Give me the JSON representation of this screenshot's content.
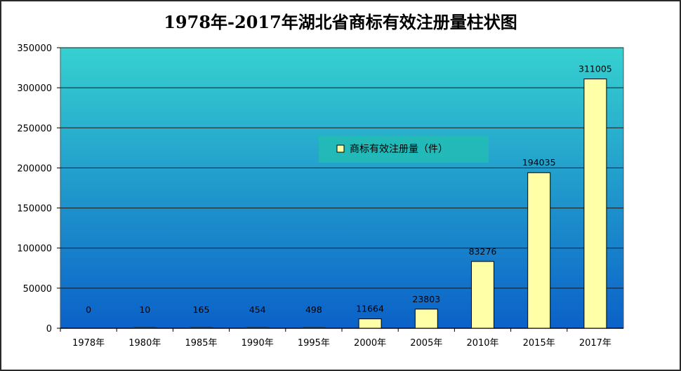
{
  "chart_data": {
    "type": "bar",
    "title": "1978年-2017年湖北省商标有效注册量柱状图",
    "categories": [
      "1978年",
      "1980年",
      "1985年",
      "1990年",
      "1995年",
      "2000年",
      "2005年",
      "2010年",
      "2015年",
      "2017年"
    ],
    "series": [
      {
        "name": "商标有效注册量（件）",
        "values": [
          0,
          10,
          165,
          454,
          498,
          11664,
          23803,
          83276,
          194035,
          311005
        ],
        "labels": [
          "0",
          "10",
          "165",
          "454",
          "498",
          "11664",
          "23803",
          "83276",
          "194035",
          "311005"
        ]
      }
    ],
    "yticks": [
      "0",
      "50000",
      "100000",
      "150000",
      "200000",
      "250000",
      "300000",
      "350000"
    ],
    "ylim": [
      0,
      350000
    ],
    "xlabel": "",
    "ylabel": "",
    "grid": true,
    "legend": "center",
    "colors": {
      "bar_fill": "#ffffa8",
      "bar_stroke": "#000000",
      "plot_top": "#36d1d0",
      "plot_bottom": "#0b61c8",
      "legend_bg": "#22bcb4",
      "grid": "#1a1a1a"
    }
  }
}
